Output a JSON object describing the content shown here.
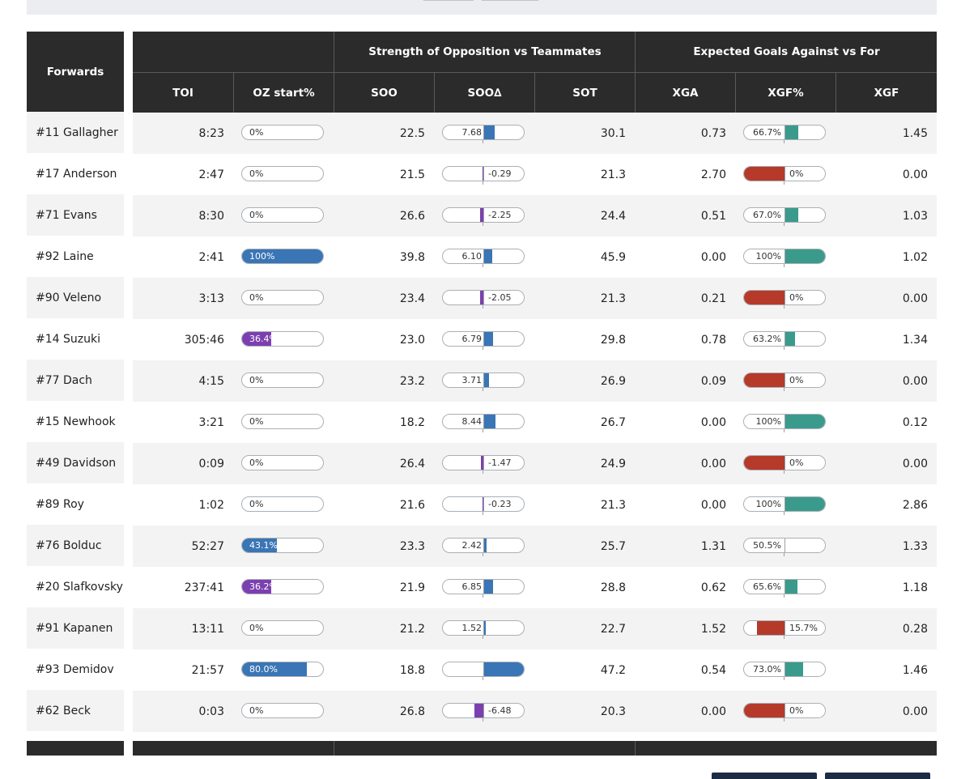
{
  "header": {
    "corner": "Forwards",
    "groups": [
      "",
      "Strength of Opposition vs Teammates",
      "Expected Goals Against vs For"
    ],
    "columns": [
      "TOI",
      "OZ start%",
      "SOO",
      "SOO∆",
      "SOT",
      "XGA",
      "XGF%",
      "XGF"
    ]
  },
  "rows": [
    {
      "player": "#11 Gallagher",
      "toi": "8:23",
      "oz": "0%",
      "oz_frac": 0,
      "oz_color": "#3a75b5",
      "soo": "22.5",
      "sood": "7.68",
      "sood_val": 7.68,
      "sot": "30.1",
      "xga": "0.73",
      "xgfp": "66.7%",
      "xgfp_val": 66.7,
      "xgf": "1.45"
    },
    {
      "player": "#17 Anderson",
      "toi": "2:47",
      "oz": "0%",
      "oz_frac": 0,
      "oz_color": "#3a75b5",
      "soo": "21.5",
      "sood": "-0.29",
      "sood_val": -0.29,
      "sot": "21.3",
      "xga": "2.70",
      "xgfp": "0%",
      "xgfp_val": 0,
      "xgf": "0.00"
    },
    {
      "player": "#71 Evans",
      "toi": "8:30",
      "oz": "0%",
      "oz_frac": 0,
      "oz_color": "#3a75b5",
      "soo": "26.6",
      "sood": "-2.25",
      "sood_val": -2.25,
      "sot": "24.4",
      "xga": "0.51",
      "xgfp": "67.0%",
      "xgfp_val": 67.0,
      "xgf": "1.03"
    },
    {
      "player": "#92 Laine",
      "toi": "2:41",
      "oz": "100%",
      "oz_frac": 1,
      "oz_color": "#3a75b5",
      "soo": "39.8",
      "sood": "6.10",
      "sood_val": 6.1,
      "sot": "45.9",
      "xga": "0.00",
      "xgfp": "100%",
      "xgfp_val": 100,
      "xgf": "1.02"
    },
    {
      "player": "#90 Veleno",
      "toi": "3:13",
      "oz": "0%",
      "oz_frac": 0,
      "oz_color": "#3a75b5",
      "soo": "23.4",
      "sood": "-2.05",
      "sood_val": -2.05,
      "sot": "21.3",
      "xga": "0.21",
      "xgfp": "0%",
      "xgfp_val": 0,
      "xgf": "0.00"
    },
    {
      "player": "#14 Suzuki",
      "toi": "305:46",
      "oz": "36.4%",
      "oz_frac": 0.364,
      "oz_color": "#7c3fb0",
      "soo": "23.0",
      "sood": "6.79",
      "sood_val": 6.79,
      "sot": "29.8",
      "xga": "0.78",
      "xgfp": "63.2%",
      "xgfp_val": 63.2,
      "xgf": "1.34"
    },
    {
      "player": "#77 Dach",
      "toi": "4:15",
      "oz": "0%",
      "oz_frac": 0,
      "oz_color": "#3a75b5",
      "soo": "23.2",
      "sood": "3.71",
      "sood_val": 3.71,
      "sot": "26.9",
      "xga": "0.09",
      "xgfp": "0%",
      "xgfp_val": 0,
      "xgf": "0.00"
    },
    {
      "player": "#15 Newhook",
      "toi": "3:21",
      "oz": "0%",
      "oz_frac": 0,
      "oz_color": "#3a75b5",
      "soo": "18.2",
      "sood": "8.44",
      "sood_val": 8.44,
      "sot": "26.7",
      "xga": "0.00",
      "xgfp": "100%",
      "xgfp_val": 100,
      "xgf": "0.12"
    },
    {
      "player": "#49 Davidson",
      "toi": "0:09",
      "oz": "0%",
      "oz_frac": 0,
      "oz_color": "#3a75b5",
      "soo": "26.4",
      "sood": "-1.47",
      "sood_val": -1.47,
      "sot": "24.9",
      "xga": "0.00",
      "xgfp": "0%",
      "xgfp_val": 0,
      "xgf": "0.00"
    },
    {
      "player": "#89 Roy",
      "toi": "1:02",
      "oz": "0%",
      "oz_frac": 0,
      "oz_color": "#3a75b5",
      "soo": "21.6",
      "sood": "-0.23",
      "sood_val": -0.23,
      "sot": "21.3",
      "xga": "0.00",
      "xgfp": "100%",
      "xgfp_val": 100,
      "xgf": "2.86"
    },
    {
      "player": "#76 Bolduc",
      "toi": "52:27",
      "oz": "43.1%",
      "oz_frac": 0.431,
      "oz_color": "#3a75b5",
      "soo": "23.3",
      "sood": "2.42",
      "sood_val": 2.42,
      "sot": "25.7",
      "xga": "1.31",
      "xgfp": "50.5%",
      "xgfp_val": 50.5,
      "xgf": "1.33"
    },
    {
      "player": "#20 Slafkovsky",
      "toi": "237:41",
      "oz": "36.2%",
      "oz_frac": 0.362,
      "oz_color": "#7c3fb0",
      "soo": "21.9",
      "sood": "6.85",
      "sood_val": 6.85,
      "sot": "28.8",
      "xga": "0.62",
      "xgfp": "65.6%",
      "xgfp_val": 65.6,
      "xgf": "1.18"
    },
    {
      "player": "#91 Kapanen",
      "toi": "13:11",
      "oz": "0%",
      "oz_frac": 0,
      "oz_color": "#3a75b5",
      "soo": "21.2",
      "sood": "1.52",
      "sood_val": 1.52,
      "sot": "22.7",
      "xga": "1.52",
      "xgfp": "15.7%",
      "xgfp_val": 15.7,
      "xgf": "0.28"
    },
    {
      "player": "#93 Demidov",
      "toi": "21:57",
      "oz": "80.0%",
      "oz_frac": 0.8,
      "oz_color": "#3a75b5",
      "soo": "18.8",
      "sood": "28.4",
      "sood_val": 28.4,
      "sot": "47.2",
      "xga": "0.54",
      "xgfp": "73.0%",
      "xgfp_val": 73.0,
      "xgf": "1.46"
    },
    {
      "player": "#62 Beck",
      "toi": "0:03",
      "oz": "0%",
      "oz_frac": 0,
      "oz_color": "#3a75b5",
      "soo": "26.8",
      "sood": "-6.48",
      "sood_val": -6.48,
      "sot": "20.3",
      "xga": "0.00",
      "xgfp": "0%",
      "xgfp_val": 0,
      "xgf": "0.00"
    }
  ],
  "colors": {
    "header_bg": "#2b2b2b",
    "stripe": "#f3f3f3",
    "oz_blue": "#3a75b5",
    "oz_purple": "#7c3fb0",
    "soo_pos": "#3a75b5",
    "soo_neg": "#7c3fb0",
    "xgf_good": "#3a9b8c",
    "xgf_bad": "#b53a2a"
  },
  "scales": {
    "soo_delta_max": 28.4
  }
}
